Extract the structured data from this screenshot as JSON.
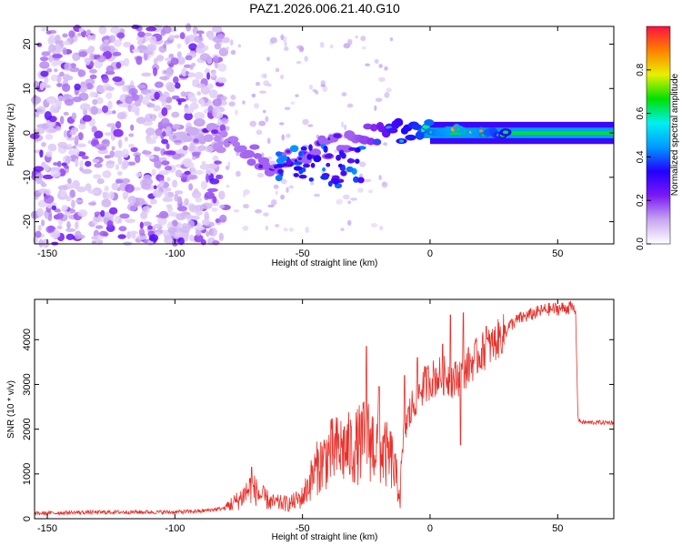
{
  "title": "PAZ1.2026.006.21.40.G10",
  "colors": {
    "snr_line": "#e8302a",
    "axis": "#000000",
    "background": "#ffffff"
  },
  "chart_data": [
    {
      "type": "heatmap",
      "title": "PAZ1.2026.006.21.40.G10",
      "xlabel": "Height of straight line (km)",
      "ylabel": "Frequency (Hz)",
      "xlim": [
        -155,
        72
      ],
      "ylim": [
        -25,
        24
      ],
      "xticks": [
        -150,
        -100,
        -50,
        0,
        50
      ],
      "xtick_labels": [
        "-150",
        "-100",
        "-50",
        "0",
        "50"
      ],
      "yticks": [
        -20,
        -10,
        0,
        10,
        20
      ],
      "ytick_labels": [
        "-20",
        "-10",
        "0",
        "10",
        "20"
      ],
      "colorbar": {
        "label": "Normalized spectral amplitude",
        "range": [
          0.0,
          1.0
        ],
        "ticks": [
          0.0,
          0.2,
          0.4,
          0.6,
          0.8
        ],
        "tick_labels": [
          "0.0",
          "0.2",
          "0.4",
          "0.6",
          "0.8"
        ],
        "colormap": [
          "#ffffff",
          "#c7a6f0",
          "#7b18f5",
          "#2200ff",
          "#0099ff",
          "#00f0f0",
          "#00e000",
          "#e8f000",
          "#ff8000",
          "#ff1040"
        ]
      },
      "ridge": {
        "description": "dominant frequency ridge",
        "x": [
          -100,
          -90,
          -80,
          -70,
          -60,
          -50,
          -40,
          -30,
          -20,
          -10,
          0,
          10,
          20,
          30,
          40,
          50,
          60,
          72
        ],
        "freq": [
          0,
          0,
          -2,
          -5,
          -7,
          -5,
          -3,
          -1,
          0,
          0,
          0,
          1,
          0,
          0,
          0,
          0,
          0,
          0
        ],
        "amplitude": [
          0.15,
          0.2,
          0.25,
          0.3,
          0.3,
          0.3,
          0.3,
          0.3,
          0.4,
          0.6,
          0.75,
          0.85,
          0.8,
          0.6,
          0.5,
          0.45,
          0.45,
          0.45
        ]
      }
    },
    {
      "type": "line",
      "xlabel": "Height of straight line (km)",
      "ylabel": "SNR (10 * v/v)",
      "xlim": [
        -155,
        72
      ],
      "ylim": [
        0,
        4900
      ],
      "xticks": [
        -150,
        -100,
        -50,
        0,
        50
      ],
      "xtick_labels": [
        "-150",
        "-100",
        "-50",
        "0",
        "50"
      ],
      "yticks": [
        0,
        1000,
        2000,
        3000,
        4000
      ],
      "ytick_labels": [
        "0",
        "1000",
        "2000",
        "3000",
        "4000"
      ],
      "series": [
        {
          "name": "SNR",
          "x": [
            -155,
            -140,
            -120,
            -100,
            -90,
            -80,
            -75,
            -70,
            -67,
            -62,
            -55,
            -50,
            -45,
            -40,
            -35,
            -30,
            -25,
            -22,
            -20,
            -15,
            -12,
            -10,
            -5,
            0,
            5,
            10,
            15,
            20,
            25,
            30,
            35,
            40,
            45,
            50,
            55,
            57,
            58,
            60,
            65,
            72
          ],
          "y": [
            100,
            120,
            130,
            130,
            150,
            220,
            350,
            600,
            450,
            300,
            280,
            400,
            900,
            1200,
            1300,
            1300,
            1500,
            1400,
            1300,
            1100,
            500,
            2100,
            2900,
            3200,
            3300,
            3200,
            3500,
            3800,
            4000,
            4300,
            4500,
            4600,
            4700,
            4720,
            4750,
            4700,
            2200,
            2150,
            2150,
            2150
          ],
          "spikes": [
            [
              -70,
              1150
            ],
            [
              -25,
              3850
            ],
            [
              -20,
              2950
            ],
            [
              -10,
              3200
            ],
            [
              -5,
              3600
            ],
            [
              5,
              3900
            ],
            [
              8,
              4550
            ],
            [
              12,
              1650
            ],
            [
              13,
              4600
            ],
            [
              22,
              4300
            ]
          ]
        }
      ]
    }
  ]
}
